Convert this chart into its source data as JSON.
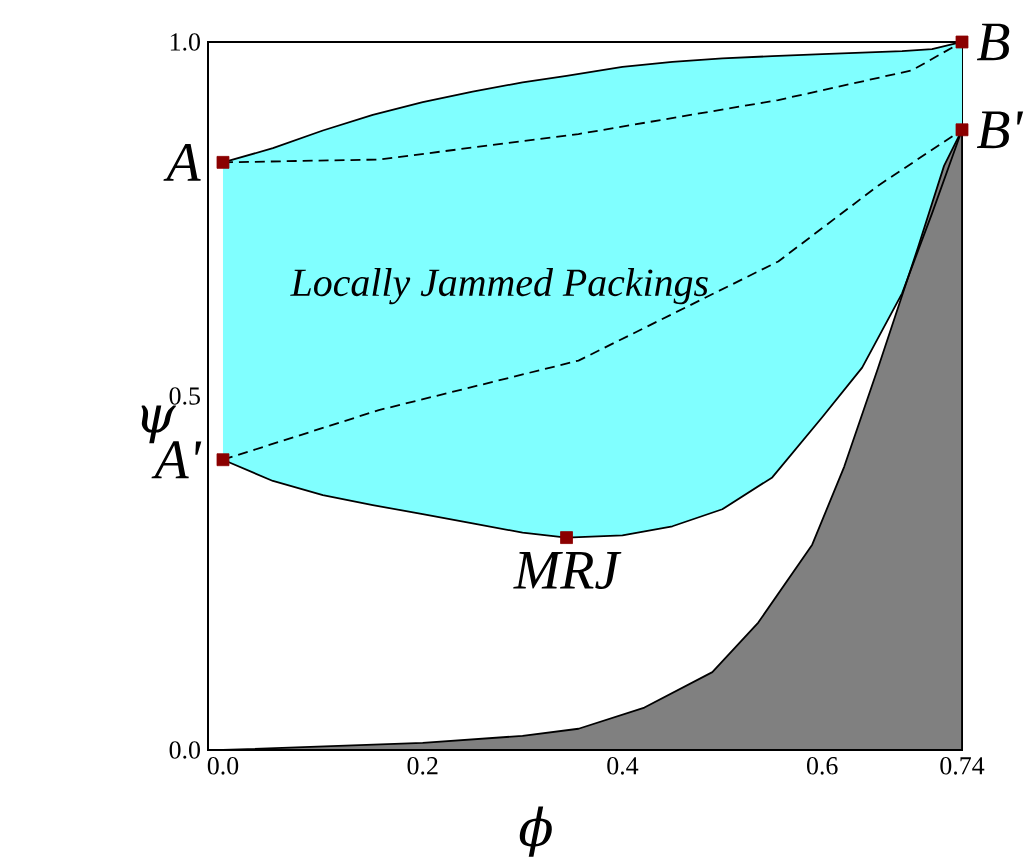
{
  "chart_data": {
    "type": "area",
    "xlabel": "ϕ",
    "ylabel": "ψ",
    "xlim": [
      -0.015,
      0.74
    ],
    "ylim": [
      0,
      1
    ],
    "xticks": [
      {
        "value": 0,
        "label": "0.0"
      },
      0.2,
      0.4,
      0.6,
      0.74
    ],
    "yticks": [
      {
        "value": 0,
        "label": "0.0"
      },
      0.5,
      {
        "value": 1,
        "label": "1.0"
      }
    ],
    "series": [
      {
        "color": "#80ffff",
        "values": [
          null,
          null,
          null,
          null,
          null,
          null,
          null,
          null,
          null,
          null,
          null,
          null,
          null,
          null,
          null,
          null,
          null
        ],
        "x": [
          0,
          0.05,
          0.1,
          0.15,
          0.2,
          0.25,
          0.3,
          0.344,
          0.4,
          0.45,
          0.5,
          0.55,
          0.6,
          0.64,
          0.68,
          0.71,
          0.74
        ],
        "lower": [
          0.41,
          0.38,
          0.36,
          0.346,
          0.333,
          0.32,
          0.307,
          0.3,
          0.303,
          0.316,
          0.34,
          0.385,
          0.47,
          0.54,
          0.645,
          0.758,
          0.876
        ],
        "upper": [
          0.83,
          0.85,
          0.875,
          0.897,
          0.915,
          0.93,
          0.943,
          0.952,
          0.965,
          0.972,
          0.977,
          0.98,
          0.983,
          0.985,
          0.987,
          0.99,
          1.0
        ]
      },
      {
        "color": "#808080",
        "x": [
          0,
          0.1,
          0.2,
          0.3,
          0.356,
          0.422,
          0.49,
          0.536,
          0.59,
          0.622,
          0.656,
          0.696,
          0.722,
          0.74
        ],
        "values": [
          0,
          0.005,
          0.01,
          0.02,
          0.03,
          0.06,
          0.11,
          0.18,
          0.29,
          0.4,
          0.54,
          0.71,
          0.825,
          0.876
        ]
      },
      {
        "type": "line",
        "color": "#000000",
        "line_style": "solid",
        "x": [
          0,
          0.05,
          0.1,
          0.15,
          0.2,
          0.25,
          0.3,
          0.344,
          0.4,
          0.45,
          0.5,
          0.55,
          0.6,
          0.64,
          0.68,
          0.71,
          0.74
        ],
        "values": [
          0.83,
          0.85,
          0.875,
          0.897,
          0.915,
          0.93,
          0.943,
          0.952,
          0.965,
          0.972,
          0.977,
          0.98,
          0.983,
          0.985,
          0.987,
          0.99,
          1.0
        ]
      },
      {
        "type": "line",
        "color": "#000000",
        "line_style": "solid",
        "x": [
          0,
          0.05,
          0.1,
          0.15,
          0.2,
          0.25,
          0.3,
          0.344,
          0.4,
          0.45,
          0.5,
          0.55,
          0.6,
          0.64,
          0.68,
          0.71,
          0.74
        ],
        "values": [
          0.41,
          0.38,
          0.36,
          0.346,
          0.333,
          0.32,
          0.307,
          0.3,
          0.303,
          0.316,
          0.34,
          0.385,
          0.47,
          0.54,
          0.645,
          0.758,
          0.876
        ]
      },
      {
        "type": "line",
        "color": "#000000",
        "line_style": "dashed",
        "x": [
          0,
          0.156,
          0.356,
          0.556,
          0.69,
          0.74
        ],
        "values": [
          0.83,
          0.834,
          0.87,
          0.918,
          0.96,
          1.0
        ]
      },
      {
        "type": "line",
        "color": "#000000",
        "line_style": "dashed",
        "x": [
          0,
          0.156,
          0.356,
          0.556,
          0.656,
          0.74
        ],
        "values": [
          0.41,
          0.48,
          0.55,
          0.69,
          0.797,
          0.876
        ]
      },
      {
        "type": "scatter",
        "color": "#8b0000",
        "marker": "square",
        "x": [
          0,
          0,
          0.344,
          0.74,
          0.74
        ],
        "values": [
          0.83,
          0.41,
          0.3,
          1.0,
          0.876
        ]
      }
    ],
    "annotations": [
      {
        "text": "A",
        "x": 0,
        "y": 0.83
      },
      {
        "text": "A'",
        "x": 0,
        "y": 0.41
      },
      {
        "text": "MRJ",
        "x": 0.344,
        "y": 0.3
      },
      {
        "text": "B",
        "x": 0.74,
        "y": 1.0
      },
      {
        "text": "B'",
        "x": 0.74,
        "y": 0.876
      },
      "Locally Jammed Packings"
    ]
  }
}
